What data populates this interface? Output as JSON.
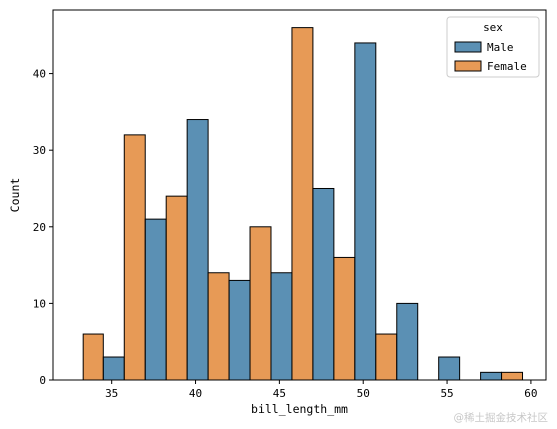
{
  "chart_data": {
    "type": "bar",
    "subtype": "histogram-dodge",
    "title": "",
    "xlabel": "bill_length_mm",
    "ylabel": "Count",
    "xlim": [
      31.5,
      60.9
    ],
    "ylim": [
      0,
      48.3
    ],
    "xticks": [
      35,
      40,
      45,
      50,
      55,
      60
    ],
    "yticks": [
      0,
      10,
      20,
      30,
      40
    ],
    "bin_edges": [
      32.1,
      34.5,
      37.0,
      39.5,
      42.0,
      44.5,
      47.0,
      49.5,
      52.0,
      54.5,
      57.0,
      59.5
    ],
    "legend": {
      "title": "sex",
      "placement": "top-right"
    },
    "series": [
      {
        "name": "Male",
        "color": "#3274a1",
        "values": [
          0,
          3,
          21,
          34,
          13,
          14,
          25,
          44,
          10,
          3,
          1
        ]
      },
      {
        "name": "Female",
        "color": "#e1812c",
        "values": [
          6,
          32,
          24,
          14,
          20,
          46,
          16,
          6,
          0,
          0,
          1
        ]
      }
    ],
    "grid": false
  },
  "watermark": "@稀土掘金技术社区"
}
